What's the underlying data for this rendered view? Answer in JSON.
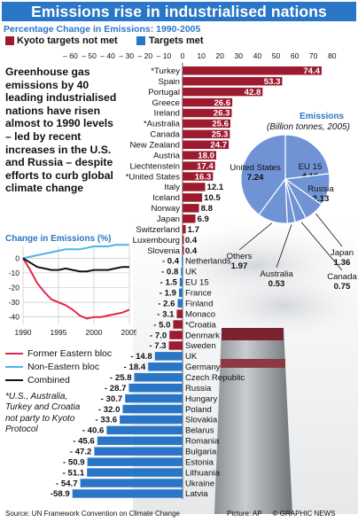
{
  "title": "Emissions rise in industrialised nations",
  "subtitle": "Percentage Change in Emissions: 1990-2005",
  "legend": {
    "not_met": "Kyoto targets not met",
    "met": "Targets met",
    "not_met_color": "#9c1b2f",
    "met_color": "#2a76c6"
  },
  "intro_text": "Greenhouse gas emissions by 40 leading industrialised nations have risen almost to 1990 levels – led by recent increases in the U.S. and Russia – despite efforts to curb global climate change",
  "footnote": "*U.S., Australia, Turkey and Croatia not party to Kyoto Protocol",
  "source": "Source: UN Framework Convention on Climate Change",
  "credit": "Picture: AP",
  "brand": "© GRAPHIC NEWS",
  "chart_data": [
    {
      "type": "bar",
      "title": "Percentage Change in Emissions: 1990-2005",
      "orientation": "horizontal",
      "xlim": [
        -60,
        80
      ],
      "tick_labels": [
        "– 60",
        "– 50",
        "– 40",
        "– 30",
        "– 20",
        "– 10",
        "0",
        "10",
        "20",
        "30",
        "40",
        "50",
        "60",
        "70",
        "80"
      ],
      "categories": [
        "*Turkey",
        "Spain",
        "Portugal",
        "Greece",
        "Ireland",
        "*Australia",
        "Canada",
        "New Zealand",
        "Austria",
        "Liechtenstein",
        "*United States",
        "Italy",
        "Iceland",
        "Norway",
        "Japan",
        "Switzerland",
        "Luxembourg",
        "Slovenia",
        "Netherlands",
        "UK",
        "EU 15",
        "France",
        "Finland",
        "Monaco",
        "*Croatia",
        "Denmark",
        "Sweden",
        "UK",
        "Germany",
        "Czech Republic",
        "Russia",
        "Hungary",
        "Poland",
        "Slovakia",
        "Belarus",
        "Romania",
        "Bulgaria",
        "Estonia",
        "Lithuania",
        "Ukraine",
        "Latvia"
      ],
      "values": [
        74.4,
        53.3,
        42.8,
        26.6,
        26.3,
        25.6,
        25.3,
        24.7,
        18.0,
        17.4,
        16.3,
        12.1,
        10.5,
        8.8,
        6.9,
        1.7,
        0.4,
        0.4,
        -0.4,
        -0.8,
        -1.5,
        -1.9,
        -2.6,
        -3.1,
        -5.0,
        -7.0,
        -7.3,
        -14.8,
        -18.4,
        -25.8,
        -28.7,
        -30.7,
        -32.0,
        -33.6,
        -40.6,
        -45.6,
        -47.2,
        -50.9,
        -51.1,
        -54.7,
        -58.9
      ],
      "value_labels": [
        "74.4",
        "53.3",
        "42.8",
        "26.6",
        "26.3",
        "25.6",
        "25.3",
        "24.7",
        "18.0",
        "17.4",
        "16.3",
        "12.1",
        "10.5",
        "8.8",
        "6.9",
        "1.7",
        "0.4",
        "0.4",
        "- 0.4",
        "- 0.8",
        "- 1.5",
        "- 1.9",
        "- 2.6",
        "- 3.1",
        "- 5.0",
        "- 7.0",
        "- 7.3",
        "- 14.8",
        "- 18.4",
        "- 25.8",
        "- 28.7",
        "- 30.7",
        "- 32.0",
        "- 33.6",
        "- 40.6",
        "- 45.6",
        "- 47.2",
        "- 50.9",
        "- 51.1",
        "- 54.7",
        "-58.9"
      ],
      "status": [
        "not_met",
        "not_met",
        "not_met",
        "not_met",
        "not_met",
        "not_met",
        "not_met",
        "not_met",
        "not_met",
        "not_met",
        "not_met",
        "not_met",
        "not_met",
        "not_met",
        "not_met",
        "not_met",
        "not_met",
        "not_met",
        "met",
        "met",
        "met",
        "met",
        "met",
        "not_met",
        "not_met",
        "not_met",
        "not_met",
        "met",
        "met",
        "met",
        "met",
        "met",
        "met",
        "met",
        "met",
        "met",
        "met",
        "met",
        "met",
        "met",
        "met"
      ]
    },
    {
      "type": "line",
      "title": "Change in Emissions (%)",
      "x": [
        1990,
        1991,
        1992,
        1993,
        1994,
        1995,
        1996,
        1997,
        1998,
        1999,
        2000,
        2001,
        2002,
        2003,
        2004,
        2005
      ],
      "x_ticks": [
        1990,
        1995,
        2000,
        2005
      ],
      "y_ticks": [
        0,
        -10,
        -20,
        -30,
        -40
      ],
      "ylim": [
        -45,
        8
      ],
      "series": [
        {
          "name": "Former Eastern bloc",
          "color": "#e0284a",
          "values": [
            0,
            -8,
            -17,
            -23,
            -28,
            -30,
            -32,
            -35,
            -39,
            -41,
            -40,
            -40,
            -39,
            -38,
            -37,
            -35
          ]
        },
        {
          "name": "Non-Eastern bloc",
          "color": "#4fb4e8",
          "values": [
            0,
            1,
            2,
            3,
            4,
            5,
            6,
            6,
            6,
            7,
            8,
            8,
            8,
            9,
            9,
            9
          ]
        },
        {
          "name": "Combined",
          "color": "#111111",
          "values": [
            0,
            -3,
            -6,
            -7,
            -8,
            -8,
            -7,
            -8,
            -9,
            -9,
            -8,
            -8,
            -8,
            -7,
            -6,
            -6
          ]
        }
      ]
    },
    {
      "type": "pie",
      "title": "Emissions",
      "subtitle": "(Billion tonnes, 2005)",
      "labels": [
        "United States",
        "EU 15",
        "Russia",
        "Japan",
        "Canada",
        "Australia",
        "Others"
      ],
      "values": [
        7.24,
        4.19,
        2.13,
        1.36,
        0.75,
        0.53,
        1.97
      ],
      "value_labels": [
        "7.24",
        "4.19",
        "2.13",
        "1.36",
        "0.75",
        "0.53",
        "1.97"
      ],
      "color": "#6f93d4"
    }
  ]
}
